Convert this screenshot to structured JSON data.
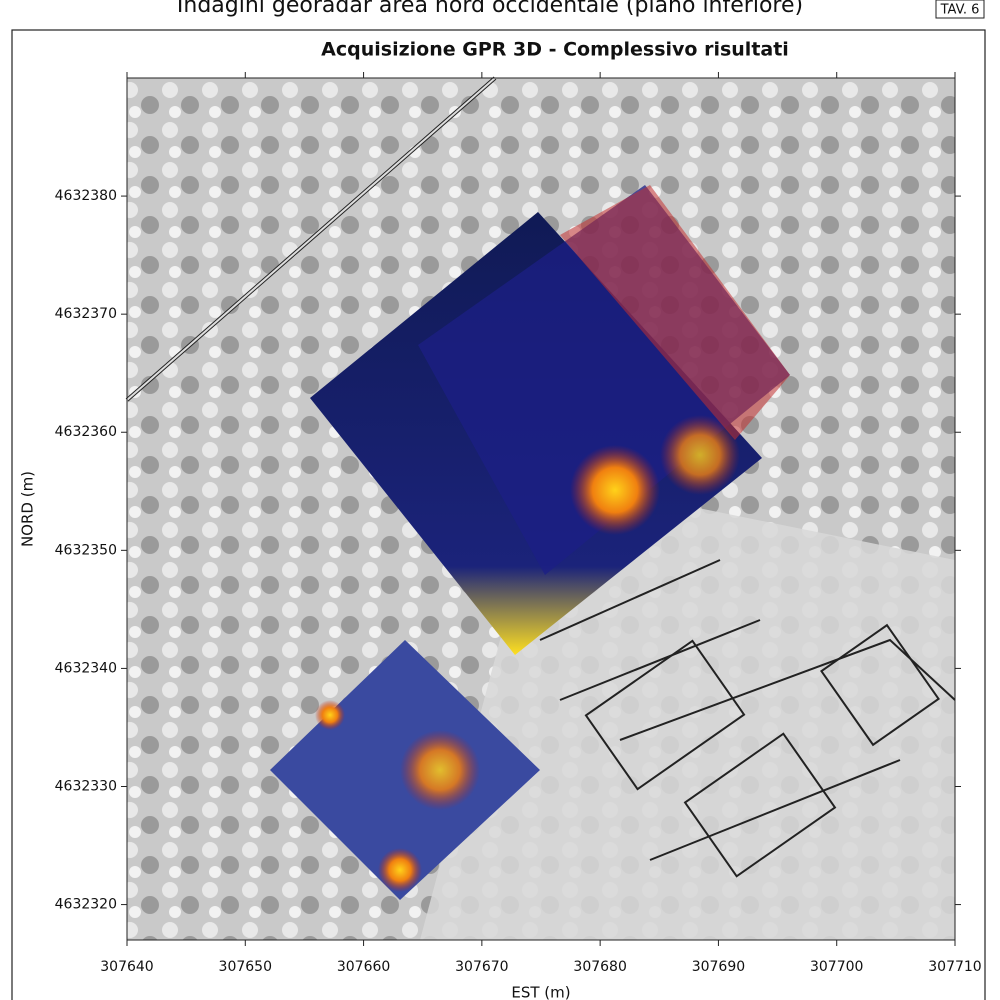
{
  "header": {
    "title": "Indagini georadar area nord occidentale (piano inferiore)",
    "sheet": "TAV. 6"
  },
  "map": {
    "title": "Acquisizione GPR 3D - Complessivo risultati",
    "x_label": "EST (m)",
    "y_label": "NORD (m)",
    "xlim": [
      307640,
      307710
    ],
    "ylim": [
      4632317,
      4632390
    ],
    "xticks": [
      307640,
      307650,
      307660,
      307670,
      307680,
      307690,
      307700,
      307710
    ],
    "yticks": [
      4632320,
      4632330,
      4632340,
      4632350,
      4632360,
      4632370,
      4632380
    ]
  }
}
